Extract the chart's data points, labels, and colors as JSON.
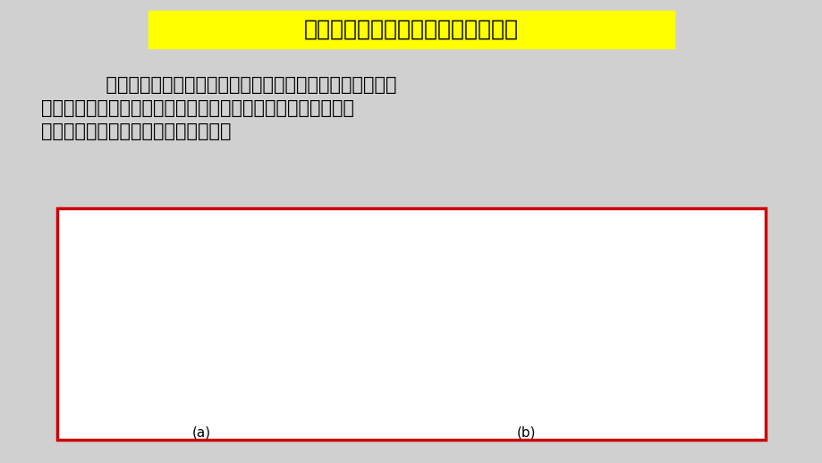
{
  "bg_color": "#d0d0d0",
  "title": "放大器偏置电路及直流工作状态判断",
  "title_bg": "#ffff00",
  "title_color": "#000000",
  "title_fontsize": 18,
  "body_text_line1": "    晶体管在放大应用时，要求外电路将晶体管偏置在放大区，",
  "body_text_line2": "而且在输入信号的变化范围内，管子始终工作在放大状态。保证",
  "body_text_line3": "信号在放大的同时不产生非线性失真。",
  "body_fontsize": 15,
  "diagram_box_color": "#cc0000",
  "label_a": "(a)",
  "label_b": "(b)"
}
